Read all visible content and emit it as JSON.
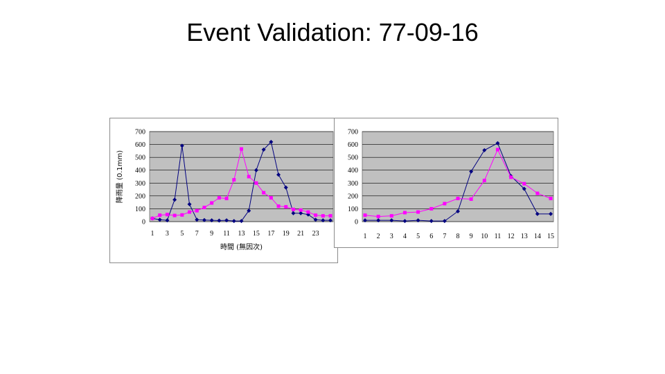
{
  "slide": {
    "title": "Event Validation: 77-09-16"
  },
  "chart_data": [
    {
      "type": "line",
      "title": "",
      "xlabel": "時間 (無因次)",
      "ylabel": "降雨量 (0.1mm)",
      "ylim": [
        0,
        700
      ],
      "yticks": [
        0,
        100,
        200,
        300,
        400,
        500,
        600,
        700
      ],
      "x": [
        1,
        2,
        3,
        4,
        5,
        6,
        7,
        8,
        9,
        10,
        11,
        12,
        13,
        14,
        15,
        16,
        17,
        18,
        19,
        20,
        21,
        22,
        23,
        24,
        25
      ],
      "xtick_labels": [
        "1",
        "3",
        "5",
        "7",
        "9",
        "11",
        "13",
        "15",
        "17",
        "19",
        "21",
        "23"
      ],
      "xtick_positions": [
        1,
        3,
        5,
        7,
        9,
        11,
        13,
        15,
        17,
        19,
        21,
        23
      ],
      "grid": true,
      "plot_background": "#c0c0c0",
      "series": [
        {
          "color": "#000080",
          "marker": "diamond",
          "values": [
            25,
            15,
            10,
            170,
            590,
            135,
            15,
            12,
            10,
            8,
            10,
            5,
            5,
            85,
            400,
            560,
            620,
            365,
            265,
            65,
            65,
            55,
            15,
            10,
            10
          ]
        },
        {
          "color": "#ff00ff",
          "marker": "square",
          "values": [
            25,
            50,
            55,
            48,
            52,
            75,
            85,
            110,
            145,
            185,
            180,
            325,
            565,
            350,
            300,
            225,
            185,
            120,
            115,
            95,
            90,
            75,
            50,
            45,
            45
          ]
        }
      ]
    },
    {
      "type": "line",
      "title": "",
      "ylim": [
        0,
        700
      ],
      "yticks": [
        0,
        100,
        200,
        300,
        400,
        500,
        600,
        700
      ],
      "x": [
        1,
        2,
        3,
        4,
        5,
        6,
        7,
        8,
        9,
        10,
        11,
        12,
        13,
        14,
        15
      ],
      "xtick_labels": [
        "1",
        "2",
        "3",
        "4",
        "5",
        "6",
        "7",
        "8",
        "9",
        "10",
        "11",
        "12",
        "13",
        "14",
        "15"
      ],
      "xtick_positions": [
        1,
        2,
        3,
        4,
        5,
        6,
        7,
        8,
        9,
        10,
        11,
        12,
        13,
        14,
        15
      ],
      "grid": true,
      "plot_background": "#c0c0c0",
      "series": [
        {
          "color": "#000080",
          "marker": "diamond",
          "values": [
            10,
            10,
            10,
            5,
            10,
            5,
            5,
            80,
            390,
            555,
            610,
            355,
            255,
            60,
            60
          ]
        },
        {
          "color": "#ff00ff",
          "marker": "square",
          "values": [
            50,
            40,
            45,
            70,
            75,
            100,
            140,
            180,
            175,
            320,
            560,
            345,
            295,
            220,
            180
          ]
        }
      ]
    }
  ]
}
